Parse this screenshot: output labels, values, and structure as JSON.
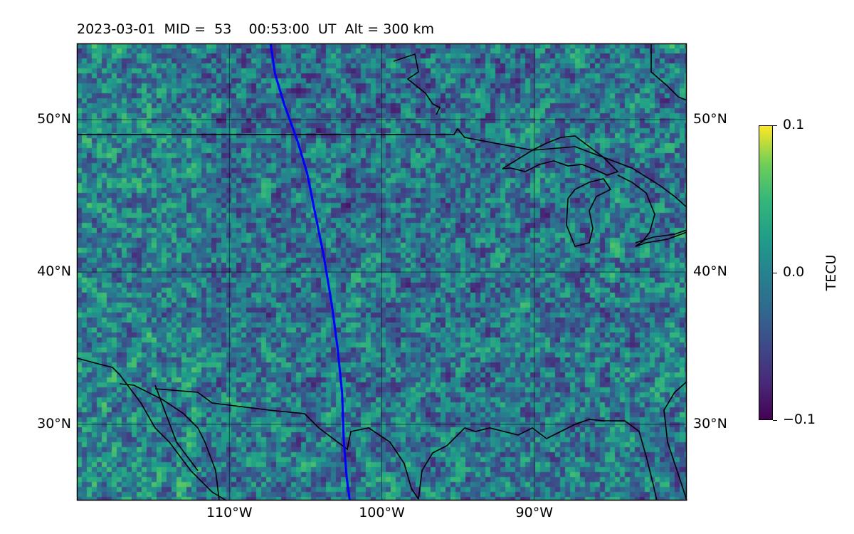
{
  "title": "2023-03-01  MID =  53    00:53:00  UT  Alt = 300 km",
  "map": {
    "lat_range": [
      25,
      55
    ],
    "lon_range": [
      -120,
      -80
    ],
    "lat_ticks": [
      {
        "value": 50,
        "label": "50°N"
      },
      {
        "value": 40,
        "label": "40°N"
      },
      {
        "value": 30,
        "label": "30°N"
      }
    ],
    "lon_ticks": [
      {
        "value": -110,
        "label": "110°W"
      },
      {
        "value": -100,
        "label": "100°W"
      },
      {
        "value": -90,
        "label": "90°W"
      }
    ],
    "grid": true,
    "track_color": "#0000ff",
    "track": [
      [
        -107.3,
        55
      ],
      [
        -107,
        53
      ],
      [
        -106.4,
        51
      ],
      [
        -105.5,
        48.5
      ],
      [
        -104.9,
        46.5
      ],
      [
        -104.4,
        44
      ],
      [
        -103.8,
        41
      ],
      [
        -103.3,
        38
      ],
      [
        -102.9,
        35
      ],
      [
        -102.6,
        32
      ],
      [
        -102.5,
        29
      ],
      [
        -102.3,
        26.5
      ],
      [
        -102.1,
        25
      ]
    ]
  },
  "colorbar": {
    "label": "TECU",
    "min": -0.1,
    "max": 0.1,
    "ticks": [
      {
        "value": 0.1,
        "label": "0.1"
      },
      {
        "value": 0.0,
        "label": "0.0"
      },
      {
        "value": -0.1,
        "label": "−0.1"
      }
    ],
    "colormap": "viridis"
  }
}
